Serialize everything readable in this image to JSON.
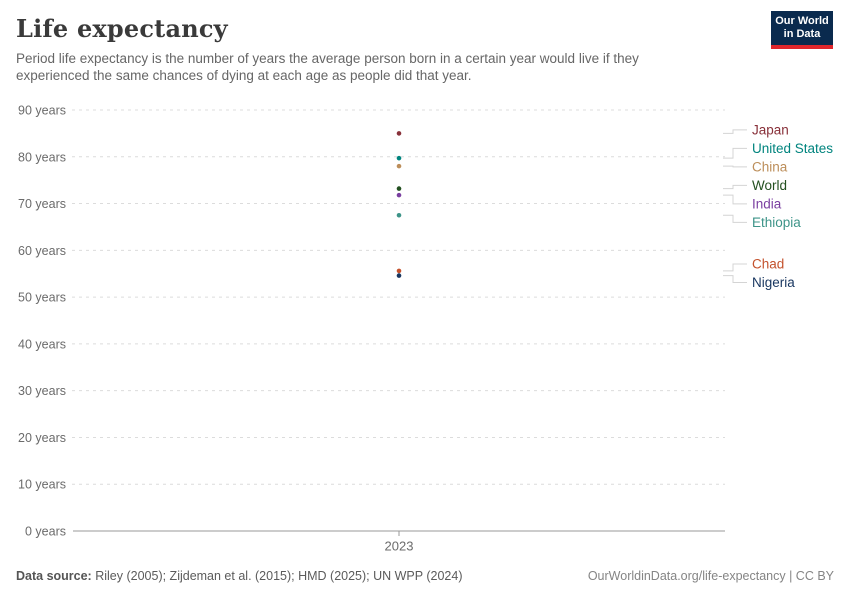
{
  "header": {
    "title": "Life expectancy",
    "subtitle": "Period life expectancy is the number of years the average person born in a certain year would live if they experienced the same chances of dying at each age as people did that year.",
    "logo_line1": "Our World",
    "logo_line2": "in Data",
    "logo_bg_color": "#0a2a4e",
    "logo_bar_color": "#e0262c"
  },
  "chart_data": {
    "type": "scatter",
    "title": "Life expectancy",
    "x": [
      2023
    ],
    "x_tick_label": "2023",
    "xlabel": "",
    "ylabel": "",
    "ylim": [
      0,
      90
    ],
    "grid": true,
    "legend_position": "right-labels",
    "y_tick_labels": [
      "0 years",
      "10 years",
      "20 years",
      "30 years",
      "40 years",
      "50 years",
      "60 years",
      "70 years",
      "80 years",
      "90 years"
    ],
    "y_tick_values": [
      0,
      10,
      20,
      30,
      40,
      50,
      60,
      70,
      80,
      90
    ],
    "series": [
      {
        "name": "Japan",
        "year": 2023,
        "value": 85.0,
        "color": "#883039"
      },
      {
        "name": "United States",
        "year": 2023,
        "value": 79.7,
        "color": "#00847E"
      },
      {
        "name": "China",
        "year": 2023,
        "value": 78.0,
        "color": "#BC8E5A"
      },
      {
        "name": "World",
        "year": 2023,
        "value": 73.2,
        "color": "#235020"
      },
      {
        "name": "India",
        "year": 2023,
        "value": 71.8,
        "color": "#7A3FA0"
      },
      {
        "name": "Ethiopia",
        "year": 2023,
        "value": 67.5,
        "color": "#3D9488"
      },
      {
        "name": "Chad",
        "year": 2023,
        "value": 55.6,
        "color": "#C4522D"
      },
      {
        "name": "Nigeria",
        "year": 2023,
        "value": 54.6,
        "color": "#17355F"
      }
    ],
    "colors": {
      "gridline": "#dcdcdc",
      "axis": "#999999",
      "tick_text": "#6b6b6b",
      "leader_line": "#d4d4d4"
    }
  },
  "footer": {
    "source_label": "Data source:",
    "source_text": "Riley (2005); Zijdeman et al. (2015); HMD (2025); UN WPP (2024)",
    "attribution": "OurWorldinData.org/life-expectancy | CC BY"
  }
}
